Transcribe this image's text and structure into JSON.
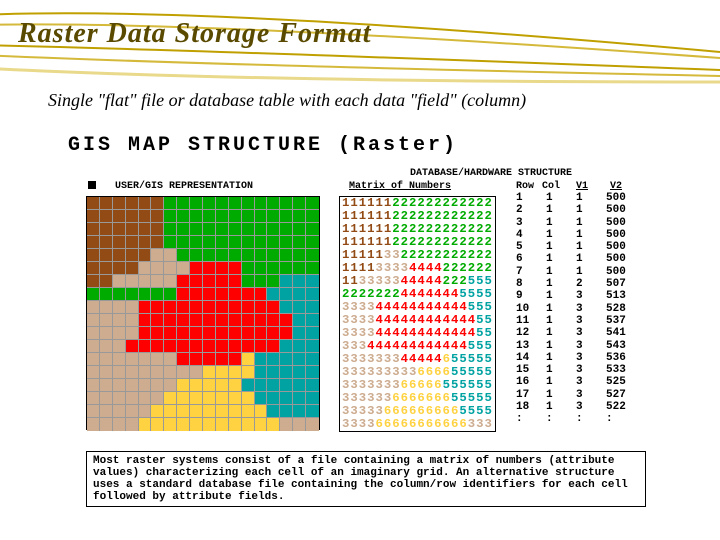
{
  "title": "Raster Data Storage Format",
  "subtitle": "Single \"flat\" file or database table with each data \"field\" (column)",
  "heading": "GIS MAP STRUCTURE  (Raster)",
  "labels": {
    "userGis": "USER/GIS REPRESENTATION",
    "dbHw": "DATABASE/HARDWARE STRUCTURE",
    "matrix": "Matrix of Numbers",
    "row": "Row",
    "col": "Col",
    "v1": "V1",
    "v2": "V2"
  },
  "colors": {
    "1": "#924b14",
    "2": "#00ab00",
    "3": "#cdac8f",
    "4": "#ff0000",
    "5": "#00a2a2",
    "6": "#ffd242"
  },
  "matrix_rows": [
    "111111222222222222",
    "111111222222222222",
    "111111222222222222",
    "111111222222222222",
    "111113322222222222",
    "111133334444222222",
    "113333344444222555",
    "222222244444445555",
    "333344444444444555",
    "333344444444444455",
    "333344444444444455",
    "333444444444444555",
    "333333344444655555",
    "333333333666655555",
    "333333366666555555",
    "333333666666655555",
    "333336666666665555",
    "333366666666666333"
  ],
  "table": [
    [
      1,
      1,
      1,
      500
    ],
    [
      2,
      1,
      1,
      500
    ],
    [
      3,
      1,
      1,
      500
    ],
    [
      4,
      1,
      1,
      500
    ],
    [
      5,
      1,
      1,
      500
    ],
    [
      6,
      1,
      1,
      500
    ],
    [
      7,
      1,
      1,
      500
    ],
    [
      8,
      1,
      2,
      507
    ],
    [
      9,
      1,
      3,
      513
    ],
    [
      10,
      1,
      3,
      528
    ],
    [
      11,
      1,
      3,
      537
    ],
    [
      12,
      1,
      3,
      541
    ],
    [
      13,
      1,
      3,
      543
    ],
    [
      14,
      1,
      3,
      536
    ],
    [
      15,
      1,
      3,
      533
    ],
    [
      16,
      1,
      3,
      525
    ],
    [
      17,
      1,
      3,
      527
    ],
    [
      18,
      1,
      3,
      522
    ],
    [
      ":",
      ":",
      ":",
      ":"
    ]
  ],
  "caption": "Most raster systems consist of a file containing a matrix of numbers (attribute values) characterizing each cell of an imaginary grid.  An alternative structure uses a standard database file containing the column/row identifiers for each cell followed by attribute fields."
}
